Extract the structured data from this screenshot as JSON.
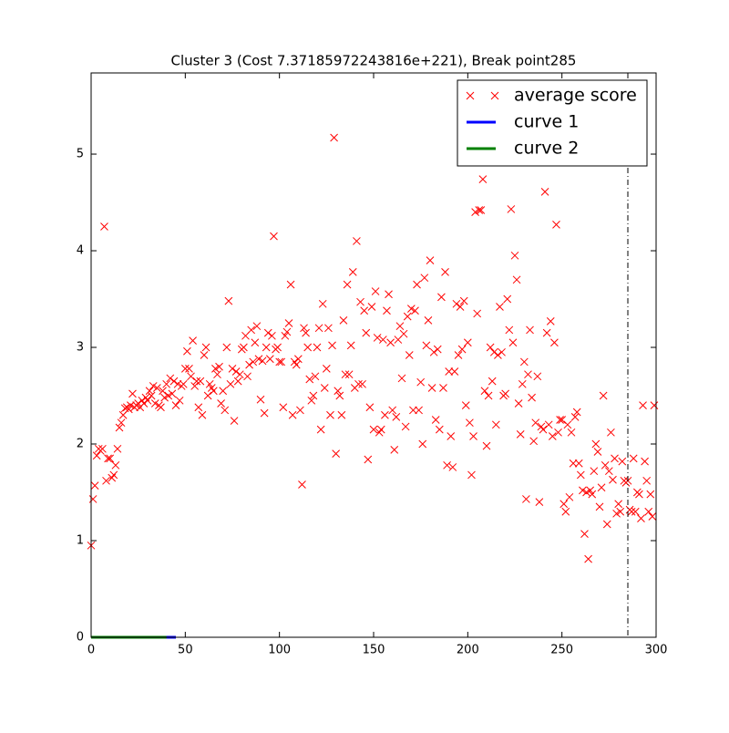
{
  "chart_data": {
    "type": "scatter",
    "title": "Cluster 3 (Cost 7.37185972243816e+221), Break point285",
    "xlim": [
      0,
      300
    ],
    "ylim": [
      0,
      5.84
    ],
    "xticks": [
      0,
      50,
      100,
      150,
      200,
      250,
      300
    ],
    "yticks": [
      0,
      1,
      2,
      3,
      4,
      5
    ],
    "break_point": 285,
    "legend": "upper right",
    "series": [
      {
        "name": "average score",
        "color": "#ff0000",
        "marker": "x",
        "x": [
          0,
          1,
          2,
          3,
          4,
          5,
          6,
          7,
          8,
          9,
          10,
          11,
          12,
          13,
          14,
          15,
          16,
          17,
          18,
          19,
          20,
          21,
          22,
          23,
          24,
          25,
          26,
          27,
          28,
          29,
          30,
          31,
          32,
          33,
          34,
          35,
          36,
          37,
          38,
          39,
          40,
          41,
          42,
          43,
          44,
          45,
          46,
          47,
          48,
          49,
          50,
          51,
          52,
          53,
          54,
          55,
          56,
          57,
          58,
          59,
          60,
          61,
          62,
          63,
          64,
          65,
          66,
          67,
          68,
          69,
          70,
          71,
          72,
          73,
          74,
          75,
          76,
          77,
          78,
          79,
          80,
          81,
          82,
          83,
          84,
          85,
          86,
          87,
          88,
          89,
          90,
          91,
          92,
          93,
          94,
          95,
          96,
          97,
          98,
          99,
          100,
          101,
          102,
          103,
          104,
          105,
          106,
          107,
          108,
          109,
          110,
          111,
          112,
          113,
          114,
          115,
          116,
          117,
          118,
          119,
          120,
          121,
          122,
          123,
          124,
          125,
          126,
          127,
          128,
          129,
          130,
          131,
          132,
          133,
          134,
          135,
          136,
          137,
          138,
          139,
          140,
          141,
          142,
          143,
          144,
          145,
          146,
          147,
          148,
          149,
          150,
          151,
          152,
          153,
          154,
          155,
          156,
          157,
          158,
          159,
          160,
          161,
          162,
          163,
          164,
          165,
          166,
          167,
          168,
          169,
          170,
          171,
          172,
          173,
          174,
          175,
          176,
          177,
          178,
          179,
          180,
          181,
          182,
          183,
          184,
          185,
          186,
          187,
          188,
          189,
          190,
          191,
          192,
          193,
          194,
          195,
          196,
          197,
          198,
          199,
          200,
          201,
          202,
          203,
          204,
          205,
          206,
          207,
          208,
          209,
          210,
          211,
          212,
          213,
          214,
          215,
          216,
          217,
          218,
          219,
          220,
          221,
          222,
          223,
          224,
          225,
          226,
          227,
          228,
          229,
          230,
          231,
          232,
          233,
          234,
          235,
          236,
          237,
          238,
          239,
          240,
          241,
          242,
          243,
          244,
          245,
          246,
          247,
          248,
          249,
          250,
          251,
          252,
          253,
          254,
          255,
          256,
          257,
          258,
          259,
          260,
          261,
          262,
          263,
          264,
          265,
          266,
          267,
          268,
          269,
          270,
          271,
          272,
          273,
          274,
          275,
          276,
          277,
          278,
          279,
          280,
          281,
          282,
          283,
          284,
          285,
          286,
          287,
          288,
          289,
          290,
          291,
          292,
          293,
          294,
          295,
          296,
          297,
          298,
          299
        ],
        "values": [
          0.95,
          1.43,
          1.57,
          1.88,
          1.95,
          1.93,
          1.95,
          4.25,
          1.62,
          1.85,
          1.85,
          1.65,
          1.68,
          1.78,
          1.95,
          2.17,
          2.22,
          2.3,
          2.37,
          2.38,
          2.36,
          2.4,
          2.52,
          2.38,
          2.4,
          2.42,
          2.38,
          2.45,
          2.42,
          2.48,
          2.45,
          2.55,
          2.5,
          2.6,
          2.42,
          2.58,
          2.4,
          2.38,
          2.55,
          2.48,
          2.62,
          2.5,
          2.68,
          2.52,
          2.65,
          2.4,
          2.62,
          2.45,
          2.6,
          2.62,
          2.78,
          2.96,
          2.78,
          2.7,
          3.07,
          2.6,
          2.65,
          2.38,
          2.65,
          2.3,
          2.92,
          3.0,
          2.5,
          2.62,
          2.58,
          2.55,
          2.78,
          2.72,
          2.8,
          2.42,
          2.55,
          2.35,
          3.0,
          3.48,
          2.62,
          2.78,
          2.24,
          2.75,
          2.65,
          2.72,
          2.98,
          3.0,
          3.12,
          2.7,
          2.82,
          3.18,
          2.85,
          3.05,
          3.22,
          2.88,
          2.46,
          2.86,
          2.32,
          3.0,
          3.15,
          2.88,
          3.12,
          4.15,
          2.98,
          3.0,
          2.85,
          2.85,
          2.38,
          3.12,
          3.16,
          3.25,
          3.65,
          2.3,
          2.85,
          2.82,
          2.88,
          2.35,
          1.58,
          3.2,
          3.15,
          3.0,
          2.67,
          2.45,
          2.5,
          2.7,
          3.0,
          3.2,
          2.15,
          3.45,
          2.58,
          2.78,
          3.2,
          2.3,
          3.02,
          5.17,
          1.9,
          2.55,
          2.5,
          2.3,
          3.28,
          2.72,
          3.65,
          2.72,
          3.02,
          3.78,
          2.58,
          4.1,
          2.62,
          3.47,
          2.62,
          3.38,
          3.15,
          1.84,
          2.38,
          3.42,
          2.15,
          3.58,
          3.1,
          2.12,
          2.15,
          3.08,
          2.3,
          3.38,
          3.55,
          3.05,
          2.35,
          1.94,
          2.28,
          3.08,
          3.22,
          2.68,
          3.14,
          2.18,
          3.32,
          2.92,
          3.4,
          2.35,
          3.38,
          3.65,
          2.35,
          2.64,
          2.0,
          3.72,
          3.02,
          3.28,
          3.9,
          2.58,
          2.95,
          2.25,
          2.98,
          2.15,
          3.52,
          2.58,
          3.78,
          1.78,
          2.75,
          2.08,
          1.76,
          2.75,
          3.45,
          2.92,
          3.42,
          2.98,
          3.48,
          2.4,
          3.05,
          2.22,
          1.68,
          2.08,
          4.4,
          3.35,
          4.42,
          4.42,
          4.74,
          2.55,
          1.98,
          2.5,
          3.0,
          2.65,
          2.95,
          2.2,
          2.92,
          3.42,
          2.95,
          2.5,
          2.52,
          3.5,
          3.18,
          4.43,
          3.05,
          3.95,
          3.7,
          2.42,
          2.1,
          2.62,
          2.85,
          1.43,
          2.72,
          3.18,
          2.48,
          2.03,
          2.22,
          2.7,
          1.4,
          2.18,
          2.15,
          4.61,
          3.15,
          2.2,
          3.27,
          2.08,
          3.05,
          4.27,
          2.12,
          2.25,
          2.25,
          1.38,
          1.3,
          2.2,
          1.45,
          2.12,
          1.8,
          2.28,
          2.33,
          1.8,
          1.68,
          1.52,
          1.07,
          1.5,
          0.81,
          1.52,
          1.48,
          1.72,
          2.0,
          1.92,
          1.35,
          1.55,
          2.5,
          1.78,
          1.17,
          1.72,
          2.12,
          1.63,
          1.85,
          1.28,
          1.38,
          1.3,
          1.82,
          1.62,
          1.6,
          1.62,
          1.32,
          1.3,
          1.85,
          1.3,
          1.5,
          1.48,
          1.23,
          2.4,
          1.82,
          1.62,
          1.3,
          1.48,
          1.25,
          2.4
        ]
      },
      {
        "name": "curve 1",
        "color": "#0000ff",
        "marker": "line",
        "x": [
          0,
          45
        ],
        "values": [
          0,
          0
        ]
      },
      {
        "name": "curve 2",
        "color": "#008000",
        "marker": "line",
        "x": [
          0,
          40
        ],
        "values": [
          0,
          0
        ]
      }
    ]
  }
}
